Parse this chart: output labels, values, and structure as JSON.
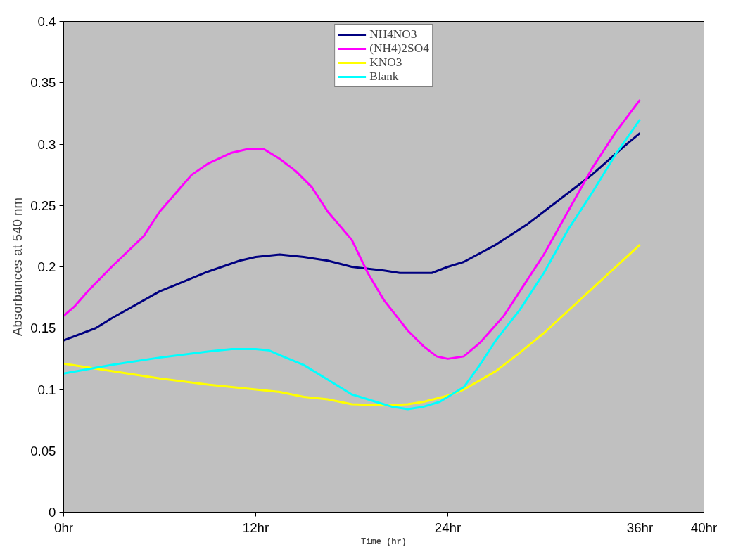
{
  "chart_data": {
    "type": "line",
    "xlabel": "Time (hr)",
    "ylabel": "Absorbances at 540 nm",
    "xlim": [
      0,
      40
    ],
    "xticks": [
      {
        "value": 0,
        "label": "0hr"
      },
      {
        "value": 12,
        "label": "12hr"
      },
      {
        "value": 24,
        "label": "24hr"
      },
      {
        "value": 36,
        "label": "36hr"
      },
      {
        "value": 40,
        "label": "40hr"
      }
    ],
    "ylim": [
      0,
      0.4
    ],
    "yticks": [
      0,
      0.05,
      0.1,
      0.15,
      0.2,
      0.25,
      0.3,
      0.35,
      0.4
    ],
    "grid": false,
    "legend": "top",
    "marker": "none",
    "line_style": "solid",
    "series": [
      {
        "name": "NH4NO3",
        "color": "#000080",
        "x": [
          0,
          2,
          3,
          6,
          9,
          11,
          12,
          13.5,
          15,
          16.5,
          18,
          20,
          21,
          23,
          24,
          25,
          27,
          29,
          31,
          33,
          35,
          36
        ],
        "values": [
          0.14,
          0.15,
          0.158,
          0.18,
          0.196,
          0.205,
          0.208,
          0.21,
          0.208,
          0.205,
          0.2,
          0.197,
          0.195,
          0.195,
          0.2,
          0.204,
          0.218,
          0.235,
          0.255,
          0.275,
          0.298,
          0.309
        ]
      },
      {
        "name": "(NH4)2SO4",
        "color": "#ff00ff",
        "x": [
          0,
          0.7,
          1.5,
          3,
          5,
          6,
          8,
          9,
          10.5,
          11.5,
          12.5,
          13.5,
          14.5,
          15.5,
          16.5,
          18,
          19,
          20,
          21.5,
          22.5,
          23.3,
          24,
          25,
          26,
          27.5,
          28.5,
          30,
          31.5,
          33,
          34.5,
          36
        ],
        "values": [
          0.16,
          0.168,
          0.18,
          0.2,
          0.225,
          0.245,
          0.275,
          0.284,
          0.293,
          0.296,
          0.296,
          0.288,
          0.278,
          0.265,
          0.245,
          0.222,
          0.195,
          0.173,
          0.148,
          0.135,
          0.127,
          0.125,
          0.127,
          0.138,
          0.16,
          0.18,
          0.21,
          0.245,
          0.28,
          0.31,
          0.336
        ]
      },
      {
        "name": "KNO3",
        "color": "#ffff00",
        "x": [
          0,
          3,
          6,
          9,
          12,
          13.5,
          15,
          16.5,
          18,
          20,
          21.5,
          22.5,
          24,
          25,
          27,
          28.5,
          30,
          32,
          34,
          36
        ],
        "values": [
          0.121,
          0.115,
          0.109,
          0.104,
          0.1,
          0.098,
          0.094,
          0.092,
          0.088,
          0.087,
          0.088,
          0.09,
          0.095,
          0.1,
          0.115,
          0.13,
          0.146,
          0.17,
          0.194,
          0.218
        ]
      },
      {
        "name": "Blank",
        "color": "#00ffff",
        "x": [
          0,
          3,
          6,
          9,
          10.5,
          12,
          12.8,
          13.5,
          15,
          16.5,
          18,
          19.5,
          20.5,
          21.5,
          22.5,
          23.5,
          24,
          25,
          26,
          27,
          28.5,
          30,
          31.5,
          33,
          34.5,
          36
        ],
        "values": [
          0.113,
          0.12,
          0.126,
          0.131,
          0.133,
          0.133,
          0.132,
          0.128,
          0.12,
          0.108,
          0.096,
          0.09,
          0.086,
          0.084,
          0.086,
          0.09,
          0.094,
          0.102,
          0.12,
          0.14,
          0.165,
          0.195,
          0.23,
          0.26,
          0.292,
          0.32
        ]
      }
    ]
  }
}
